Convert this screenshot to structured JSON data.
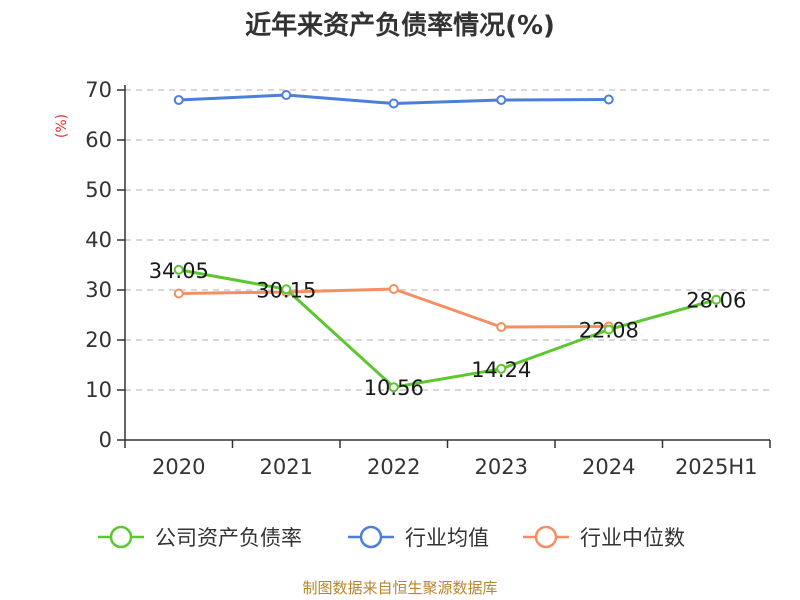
{
  "chart_data": {
    "type": "line",
    "title": "近年来资产负债率情况(%)",
    "ylabel": "(%)",
    "xlabel": "",
    "categories": [
      "2020",
      "2021",
      "2022",
      "2023",
      "2024",
      "2025H1"
    ],
    "y_ticks": [
      "0",
      "10",
      "20",
      "30",
      "40",
      "50",
      "60",
      "70"
    ],
    "ylim": [
      0,
      70
    ],
    "grid": true,
    "legend_placement": "bottom",
    "series": [
      {
        "name": "公司资产负债率",
        "color": "#5cc72e",
        "values": [
          34.05,
          30.15,
          10.56,
          14.24,
          22.08,
          28.06
        ],
        "labels": [
          "34.05",
          "30.15",
          "10.56",
          "14.24",
          "22.08",
          "28.06"
        ]
      },
      {
        "name": "行业均值",
        "color": "#4b7fd9",
        "values": [
          68.0,
          69.0,
          67.3,
          68.0,
          68.1,
          null
        ]
      },
      {
        "name": "行业中位数",
        "color": "#f39062",
        "values": [
          29.3,
          29.6,
          30.2,
          22.6,
          22.7,
          null
        ]
      }
    ]
  },
  "source_text": "制图数据来自恒生聚源数据库"
}
